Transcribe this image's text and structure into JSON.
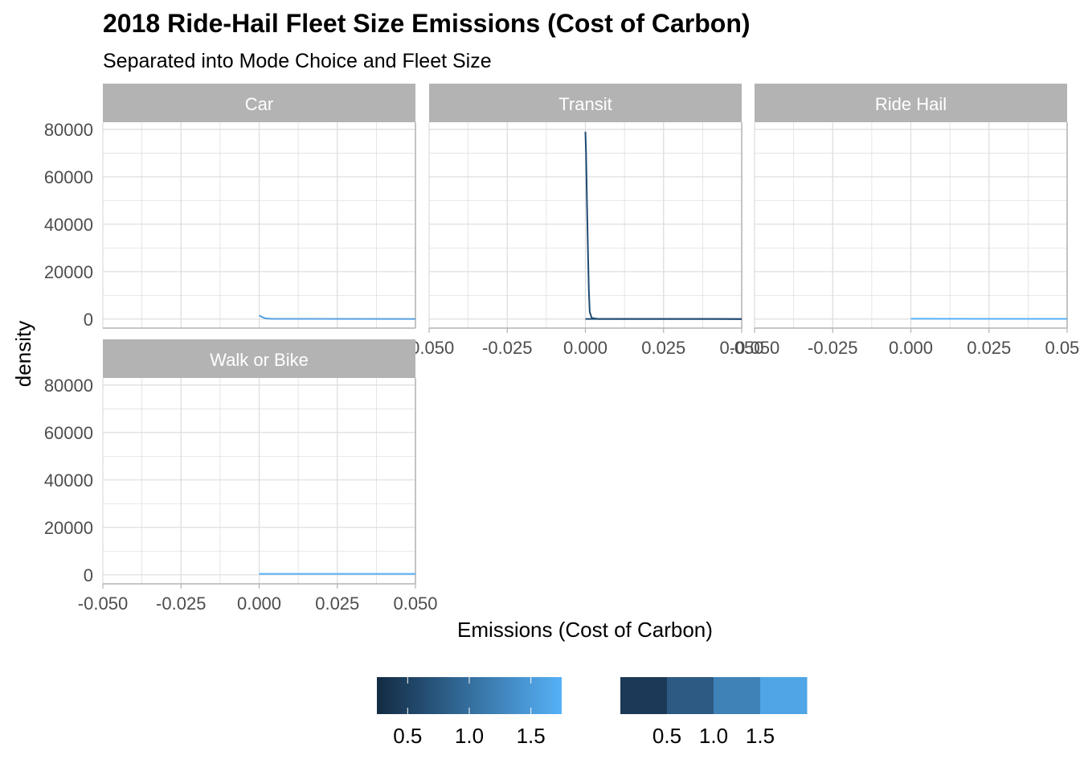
{
  "chart_data": {
    "type": "area",
    "title": "2018 Ride-Hail Fleet Size Emissions (Cost of Carbon)",
    "subtitle": "Separated into Mode Choice and Fleet Size",
    "xlabel": "Emissions (Cost of Carbon)",
    "ylabel": "density",
    "xlim": [
      -0.05,
      0.05
    ],
    "ylim": [
      -3800,
      83000
    ],
    "x_ticks": [
      -0.05,
      -0.025,
      0,
      0.025,
      0.05
    ],
    "x_tick_labels": [
      "-0.050",
      "-0.025",
      "0.000",
      "0.025",
      "0.050"
    ],
    "y_ticks": [
      0,
      20000,
      40000,
      60000,
      80000
    ],
    "y_tick_labels": [
      "0",
      "20000",
      "40000",
      "60000",
      "80000"
    ],
    "grid": true,
    "panels": [
      {
        "name": "Car",
        "show_x_ticks": false,
        "series": [
          {
            "points": [
              [
                0.0,
                1500
              ],
              [
                0.0005,
                1200
              ],
              [
                0.0012,
                700
              ],
              [
                0.002,
                300
              ],
              [
                0.004,
                100
              ],
              [
                0.05,
                60
              ]
            ]
          }
        ]
      },
      {
        "name": "Transit",
        "show_x_ticks": true,
        "series": [
          {
            "points": [
              [
                0.0,
                79000
              ],
              [
                0.0002,
                70000
              ],
              [
                0.0005,
                50000
              ],
              [
                0.0008,
                30000
              ],
              [
                0.0011,
                12000
              ],
              [
                0.0014,
                3000
              ],
              [
                0.002,
                500
              ],
              [
                0.004,
                80
              ],
              [
                0.05,
                40
              ]
            ]
          },
          {
            "points": [
              [
                0.0,
                80
              ],
              [
                0.01,
                60
              ],
              [
                0.05,
                40
              ]
            ]
          }
        ]
      },
      {
        "name": "Ride Hail",
        "show_x_ticks": true,
        "series": [
          {
            "points": [
              [
                0.0,
                120
              ],
              [
                0.05,
                100
              ]
            ]
          }
        ]
      },
      {
        "name": "Walk or Bike",
        "show_x_ticks": true,
        "series": [
          {
            "points": [
              [
                0.0,
                420
              ],
              [
                0.05,
                400
              ]
            ]
          }
        ]
      }
    ],
    "legends": [
      {
        "type": "colorbar",
        "ticks": [
          0.5,
          1.0,
          1.5
        ],
        "tick_labels": [
          "0.5",
          "1.0",
          "1.5"
        ],
        "range": [
          0.25,
          1.75
        ],
        "low_color": "#132b43",
        "high_color": "#56b1f7"
      },
      {
        "type": "bins",
        "ticks": [
          0.5,
          1.0,
          1.5
        ],
        "tick_labels": [
          "0.5",
          "1.0",
          "1.5"
        ],
        "colors": [
          "#1c3a57",
          "#2c5a82",
          "#3f82b8",
          "#4fa5e5"
        ]
      }
    ],
    "colors": {
      "strip_bg": "#b3b3b3",
      "grid": "#dcdcdc",
      "border": "#b3b3b3",
      "car_line": "#56a0e0",
      "transit_line": "#1f4a72",
      "ridehail_line": "#56b1f7",
      "walk_line": "#56b1f7"
    }
  }
}
